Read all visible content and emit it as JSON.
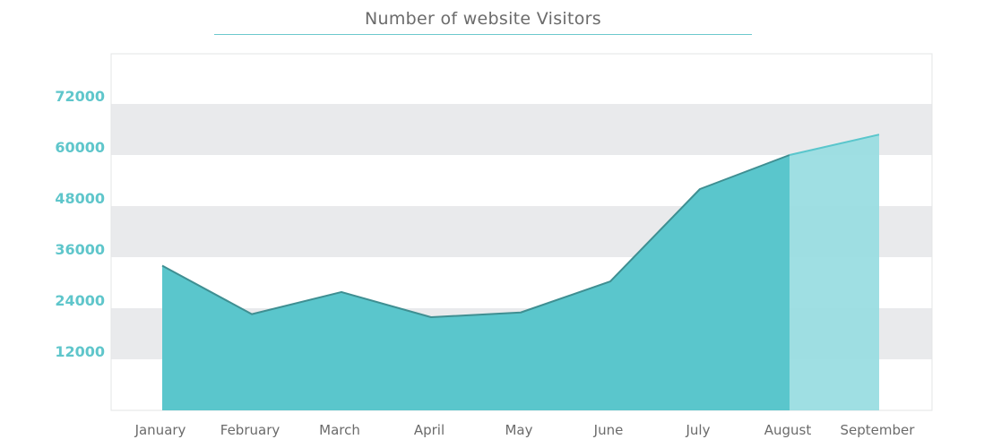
{
  "chart_data": {
    "type": "area",
    "title": "Number of website Visitors",
    "xlabel": "",
    "ylabel": "",
    "categories": [
      "January",
      "February",
      "March",
      "April",
      "May",
      "June",
      "July",
      "August",
      "September"
    ],
    "series": [
      {
        "values": [
          34000,
          22600,
          27800,
          21900,
          23000,
          30300,
          52000,
          60000,
          64800
        ]
      }
    ],
    "highlighted_segment": {
      "from": "August",
      "to": "September"
    },
    "y_ticks": [
      12000,
      24000,
      36000,
      48000,
      60000,
      72000
    ],
    "ylim": [
      0,
      72000
    ],
    "grid": "alternating horizontal bands",
    "legend": "none",
    "colors": {
      "area_fill": "#5ac6cc",
      "line": "#3f8f92",
      "highlight_fill": "#9adde1",
      "highlight_line": "#5ac6cc",
      "band": "#e9eaec",
      "ytick": "#5fc6cb",
      "xtick": "#6b6b6b",
      "title": "#6b6b6b"
    }
  }
}
